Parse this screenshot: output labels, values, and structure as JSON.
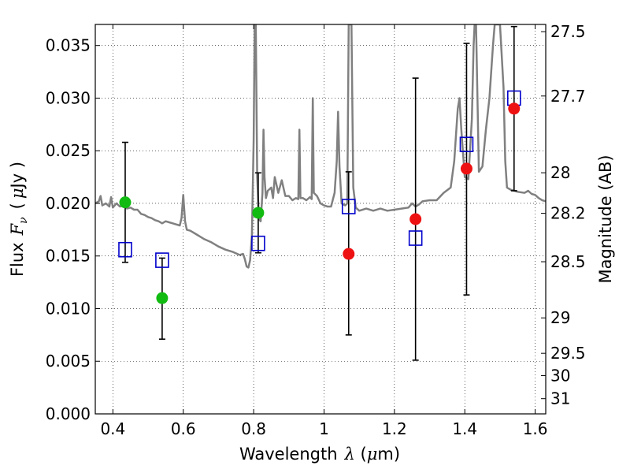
{
  "chart_data": {
    "type": "scatter",
    "xlabel_prefix": "Wavelength",
    "xlabel_symbol": "λ",
    "xlabel_unit_open": " (",
    "xlabel_unit_mu": "μ",
    "xlabel_unit_rest": "m)",
    "ylabel_prefix": "Flux",
    "ylabel_symbol": "F",
    "ylabel_subscript": "ν",
    "ylabel_unit_open": "(",
    "ylabel_unit_mu": "μ",
    "ylabel_unit_rest": "Jy )",
    "y2label": "Magnitude (AB)",
    "xlim": [
      0.35,
      1.63
    ],
    "ylim": [
      0.0,
      0.037
    ],
    "grid": true,
    "x_ticks": [
      {
        "value": 0.4,
        "label": "0.4"
      },
      {
        "value": 0.6,
        "label": "0.6"
      },
      {
        "value": 0.8,
        "label": "0.8"
      },
      {
        "value": 1.0,
        "label": "1"
      },
      {
        "value": 1.2,
        "label": "1.2"
      },
      {
        "value": 1.4,
        "label": "1.4"
      },
      {
        "value": 1.6,
        "label": "1.6"
      }
    ],
    "y_ticks": [
      {
        "value": 0.0,
        "label": "0.000"
      },
      {
        "value": 0.005,
        "label": "0.005"
      },
      {
        "value": 0.01,
        "label": "0.010"
      },
      {
        "value": 0.015,
        "label": "0.015"
      },
      {
        "value": 0.02,
        "label": "0.020"
      },
      {
        "value": 0.025,
        "label": "0.025"
      },
      {
        "value": 0.03,
        "label": "0.030"
      },
      {
        "value": 0.035,
        "label": "0.035"
      }
    ],
    "y2_ticks": [
      {
        "mag": 27.5,
        "label": "27.5"
      },
      {
        "mag": 27.7,
        "label": "27.7"
      },
      {
        "mag": 28.0,
        "label": "28"
      },
      {
        "mag": 28.2,
        "label": "28.2"
      },
      {
        "mag": 28.5,
        "label": "28.5"
      },
      {
        "mag": 29.0,
        "label": "29"
      },
      {
        "mag": 29.5,
        "label": "29.5"
      },
      {
        "mag": 30.0,
        "label": "30"
      },
      {
        "mag": 31.0,
        "label": "31"
      }
    ],
    "series": [
      {
        "kind": "spectrum",
        "color": "#808080",
        "points": [
          [
            0.35,
            0.02
          ],
          [
            0.36,
            0.0202
          ],
          [
            0.365,
            0.0207
          ],
          [
            0.37,
            0.0198
          ],
          [
            0.38,
            0.02
          ],
          [
            0.39,
            0.0197
          ],
          [
            0.395,
            0.0206
          ],
          [
            0.4,
            0.0196
          ],
          [
            0.41,
            0.02
          ],
          [
            0.42,
            0.0197
          ],
          [
            0.43,
            0.0198
          ],
          [
            0.44,
            0.0195
          ],
          [
            0.45,
            0.0196
          ],
          [
            0.46,
            0.0194
          ],
          [
            0.47,
            0.0194
          ],
          [
            0.48,
            0.019
          ],
          [
            0.49,
            0.0189
          ],
          [
            0.5,
            0.0187
          ],
          [
            0.51,
            0.0186
          ],
          [
            0.52,
            0.0184
          ],
          [
            0.53,
            0.0183
          ],
          [
            0.54,
            0.0181
          ],
          [
            0.55,
            0.0183
          ],
          [
            0.56,
            0.0182
          ],
          [
            0.57,
            0.0181
          ],
          [
            0.58,
            0.018
          ],
          [
            0.59,
            0.0179
          ],
          [
            0.595,
            0.0186
          ],
          [
            0.6,
            0.0208
          ],
          [
            0.605,
            0.0183
          ],
          [
            0.61,
            0.0175
          ],
          [
            0.62,
            0.0174
          ],
          [
            0.64,
            0.017
          ],
          [
            0.66,
            0.0166
          ],
          [
            0.68,
            0.0163
          ],
          [
            0.7,
            0.0159
          ],
          [
            0.72,
            0.0156
          ],
          [
            0.74,
            0.0154
          ],
          [
            0.76,
            0.0151
          ],
          [
            0.77,
            0.0152
          ],
          [
            0.775,
            0.0147
          ],
          [
            0.78,
            0.014
          ],
          [
            0.785,
            0.0139
          ],
          [
            0.79,
            0.0146
          ],
          [
            0.795,
            0.017
          ],
          [
            0.8,
            0.026
          ],
          [
            0.803,
            0.037
          ],
          [
            0.806,
            0.037
          ],
          [
            0.81,
            0.0225
          ],
          [
            0.815,
            0.0185
          ],
          [
            0.82,
            0.0183
          ],
          [
            0.825,
            0.021
          ],
          [
            0.828,
            0.027
          ],
          [
            0.831,
            0.0225
          ],
          [
            0.835,
            0.0205
          ],
          [
            0.84,
            0.0212
          ],
          [
            0.85,
            0.0215
          ],
          [
            0.855,
            0.0205
          ],
          [
            0.86,
            0.0225
          ],
          [
            0.87,
            0.021
          ],
          [
            0.88,
            0.0222
          ],
          [
            0.89,
            0.0207
          ],
          [
            0.9,
            0.0207
          ],
          [
            0.91,
            0.0203
          ],
          [
            0.92,
            0.0205
          ],
          [
            0.927,
            0.0204
          ],
          [
            0.93,
            0.027
          ],
          [
            0.933,
            0.0205
          ],
          [
            0.94,
            0.0205
          ],
          [
            0.95,
            0.0203
          ],
          [
            0.96,
            0.0206
          ],
          [
            0.965,
            0.0204
          ],
          [
            0.968,
            0.03
          ],
          [
            0.971,
            0.021
          ],
          [
            0.98,
            0.0207
          ],
          [
            0.99,
            0.02
          ],
          [
            1.0,
            0.0198
          ],
          [
            1.01,
            0.0197
          ],
          [
            1.02,
            0.0197
          ],
          [
            1.03,
            0.021
          ],
          [
            1.036,
            0.024
          ],
          [
            1.04,
            0.0287
          ],
          [
            1.044,
            0.0235
          ],
          [
            1.05,
            0.02
          ],
          [
            1.06,
            0.0198
          ],
          [
            1.066,
            0.02
          ],
          [
            1.07,
            0.037
          ],
          [
            1.078,
            0.037
          ],
          [
            1.083,
            0.0215
          ],
          [
            1.09,
            0.0196
          ],
          [
            1.1,
            0.0193
          ],
          [
            1.12,
            0.0195
          ],
          [
            1.14,
            0.0193
          ],
          [
            1.16,
            0.0195
          ],
          [
            1.18,
            0.0193
          ],
          [
            1.2,
            0.0194
          ],
          [
            1.22,
            0.0195
          ],
          [
            1.24,
            0.0196
          ],
          [
            1.25,
            0.02
          ],
          [
            1.26,
            0.0197
          ],
          [
            1.27,
            0.0199
          ],
          [
            1.28,
            0.0202
          ],
          [
            1.3,
            0.0203
          ],
          [
            1.32,
            0.0203
          ],
          [
            1.34,
            0.021
          ],
          [
            1.36,
            0.0215
          ],
          [
            1.37,
            0.024
          ],
          [
            1.38,
            0.029
          ],
          [
            1.385,
            0.03
          ],
          [
            1.39,
            0.027
          ],
          [
            1.4,
            0.0225
          ],
          [
            1.41,
            0.0223
          ],
          [
            1.42,
            0.028
          ],
          [
            1.425,
            0.035
          ],
          [
            1.428,
            0.037
          ],
          [
            1.432,
            0.037
          ],
          [
            1.436,
            0.03
          ],
          [
            1.44,
            0.023
          ],
          [
            1.45,
            0.0235
          ],
          [
            1.46,
            0.027
          ],
          [
            1.47,
            0.03
          ],
          [
            1.48,
            0.035
          ],
          [
            1.485,
            0.037
          ],
          [
            1.5,
            0.037
          ],
          [
            1.51,
            0.031
          ],
          [
            1.515,
            0.024
          ],
          [
            1.52,
            0.0215
          ],
          [
            1.53,
            0.0213
          ],
          [
            1.55,
            0.0211
          ],
          [
            1.57,
            0.021
          ],
          [
            1.58,
            0.0212
          ],
          [
            1.59,
            0.0209
          ],
          [
            1.6,
            0.0208
          ],
          [
            1.61,
            0.0205
          ],
          [
            1.62,
            0.0203
          ],
          [
            1.63,
            0.0202
          ]
        ]
      },
      {
        "kind": "model-flux",
        "marker": "open-square",
        "color": "#0000cc",
        "points": [
          {
            "x": 0.435,
            "y": 0.0156
          },
          {
            "x": 0.54,
            "y": 0.0146
          },
          {
            "x": 0.813,
            "y": 0.0162
          },
          {
            "x": 1.07,
            "y": 0.0197
          },
          {
            "x": 1.26,
            "y": 0.0167
          },
          {
            "x": 1.405,
            "y": 0.0256
          },
          {
            "x": 1.54,
            "y": 0.03
          }
        ]
      },
      {
        "kind": "detections",
        "marker": "filled-circle",
        "color": "#11bb11",
        "points": [
          {
            "x": 0.435,
            "y": 0.0201,
            "err_low": 0.0144,
            "err_high": 0.0258
          },
          {
            "x": 0.54,
            "y": 0.011,
            "err_low": 0.0071,
            "err_high": 0.0148
          },
          {
            "x": 0.813,
            "y": 0.0191,
            "err_low": 0.0153,
            "err_high": 0.0229
          }
        ]
      },
      {
        "kind": "upper-limits",
        "marker": "filled-circle",
        "color": "#ee1111",
        "points": [
          {
            "x": 1.07,
            "y": 0.0152,
            "err_low": 0.0075,
            "err_high": 0.023
          },
          {
            "x": 1.26,
            "y": 0.0185,
            "err_low": 0.0051,
            "err_high": 0.0319
          },
          {
            "x": 1.405,
            "y": 0.0233,
            "err_low": 0.0113,
            "err_high": 0.0352
          },
          {
            "x": 1.54,
            "y": 0.029,
            "err_low": 0.0212,
            "err_high": 0.0368
          }
        ]
      }
    ]
  }
}
